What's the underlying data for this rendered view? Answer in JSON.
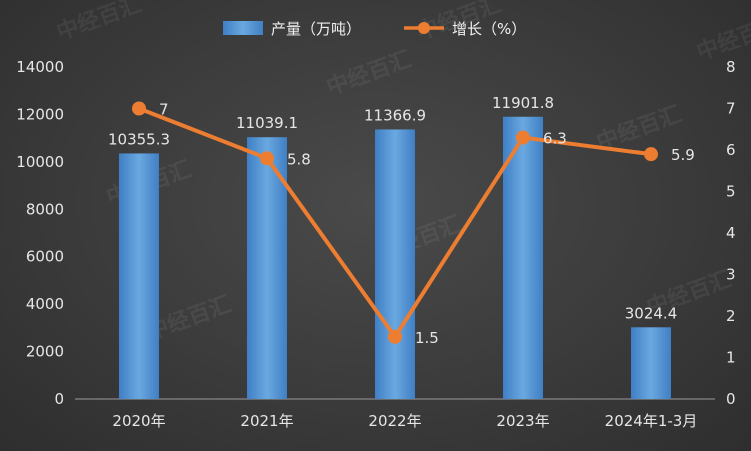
{
  "chart_data": {
    "type": "bar+line",
    "title": "",
    "categories": [
      "2020年",
      "2021年",
      "2022年",
      "2023年",
      "2024年1-3月"
    ],
    "series": [
      {
        "name": "产量（万吨）",
        "kind": "bar",
        "axis": "left",
        "color": "#5b9bd5",
        "values": [
          10355.3,
          11039.1,
          11366.9,
          11901.8,
          3024.4
        ],
        "labels": [
          "10355.3",
          "11039.1",
          "11366.9",
          "11901.8",
          "3024.4"
        ]
      },
      {
        "name": "增长（%）",
        "kind": "line",
        "axis": "right",
        "color": "#ed7d31",
        "values": [
          7,
          5.8,
          1.5,
          6.3,
          5.9
        ],
        "labels": [
          "7",
          "5.8",
          "1.5",
          "6.3",
          "5.9"
        ]
      }
    ],
    "y_left": {
      "min": 0,
      "max": 14000,
      "step": 2000,
      "ticks": [
        "0",
        "2000",
        "4000",
        "6000",
        "8000",
        "10000",
        "12000",
        "14000"
      ]
    },
    "y_right": {
      "min": 0,
      "max": 8,
      "step": 1,
      "ticks": [
        "0",
        "1",
        "2",
        "3",
        "4",
        "5",
        "6",
        "7",
        "8"
      ]
    },
    "grid": false,
    "legend_position": "top-center",
    "watermark": "中经百汇"
  }
}
